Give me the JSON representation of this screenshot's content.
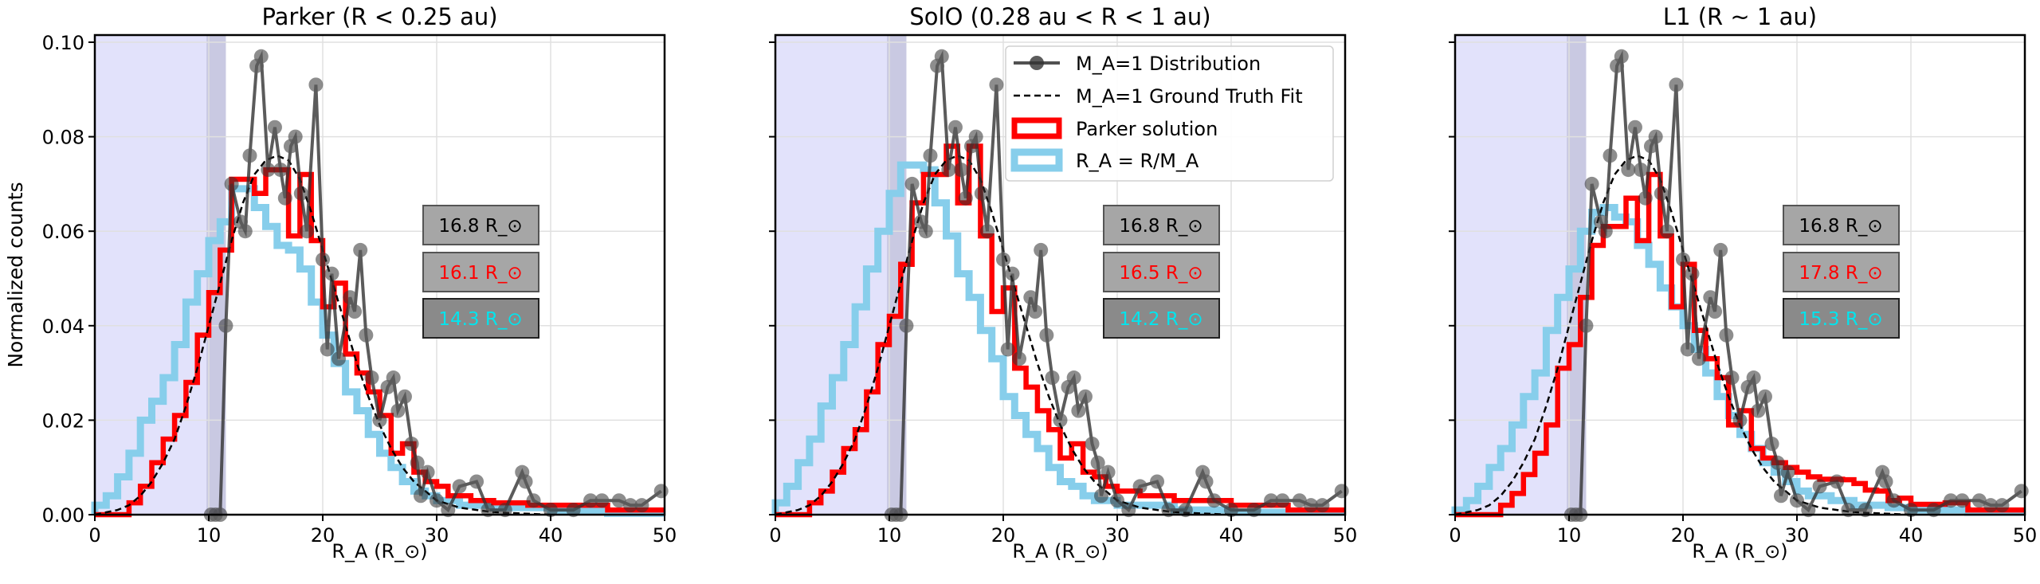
{
  "chart_data": [
    {
      "type": "line",
      "title": "Parker (R < 0.25 au)",
      "xlabel": "R_A (R_⊙)",
      "ylabel": "Normalized counts",
      "xlim": [
        0,
        50
      ],
      "ylim": [
        0,
        0.1015
      ],
      "xticks": [
        0,
        10,
        20,
        30,
        40,
        50
      ],
      "yticks": [
        "0.00",
        "0.02",
        "0.04",
        "0.06",
        "0.08",
        "0.10"
      ],
      "grid": true,
      "shaded_regions": [
        {
          "from": 0,
          "to": 11.5,
          "color": "#e2e2fb"
        },
        {
          "from": 9.8,
          "to": 11.5,
          "color": "#c9c9e2"
        }
      ],
      "bin_width": 1,
      "parker_solution": [
        0,
        0,
        0,
        0.0025,
        0.006,
        0.011,
        0.016,
        0.021,
        0.028,
        0.038,
        0.047,
        0.056,
        0.071,
        0.071,
        0.068,
        0.073,
        0.073,
        0.059,
        0.072,
        0.058,
        0.044,
        0.049,
        0.034,
        0.03,
        0.026,
        0.021,
        0.013,
        0.015,
        0.009,
        0.007,
        0.006,
        0.004,
        0.004,
        0.003,
        0.003,
        0.0025,
        0.0025,
        0.0025,
        0.002,
        0.002,
        0.002,
        0.002,
        0.002,
        0.002,
        0.002,
        0.001,
        0.001,
        0.001,
        0.001,
        0.001
      ],
      "ra_r_over_ma": [
        0.002,
        0.004,
        0.008,
        0.013,
        0.02,
        0.024,
        0.029,
        0.036,
        0.045,
        0.051,
        0.058,
        0.062,
        0.069,
        0.069,
        0.065,
        0.061,
        0.057,
        0.056,
        0.052,
        0.045,
        0.038,
        0.032,
        0.026,
        0.022,
        0.017,
        0.013,
        0.01,
        0.007,
        0.005,
        0.004,
        0.003,
        0.003,
        0.002,
        0.002,
        0.002,
        0.0015,
        0.0015,
        0.0015,
        0.0015,
        0.0015,
        0.0008,
        0.0008,
        0.0008,
        0.0008,
        0.0008,
        0.0003,
        0.0003,
        0.0003,
        0.0003,
        0.0003
      ],
      "annotations": [
        {
          "text": "16.8 R_⊙",
          "color": "#000000",
          "box": "#a6a6a6"
        },
        {
          "text": "16.1 R_⊙",
          "color": "#ff0000",
          "box": "#a6a6a6"
        },
        {
          "text": "14.3 R_⊙",
          "color": "#00e5ee",
          "box": "#8a8a8a"
        }
      ]
    },
    {
      "type": "line",
      "title": "SolO (0.28 au < R < 1 au)",
      "xlabel": "R_A (R_⊙)",
      "xlim": [
        0,
        50
      ],
      "ylim": [
        0,
        0.1015
      ],
      "xticks": [
        0,
        10,
        20,
        30,
        40,
        50
      ],
      "grid": true,
      "legend": {
        "placement": "top-right",
        "entries": [
          "M_A=1 Distribution",
          "M_A=1 Ground Truth Fit",
          "Parker solution",
          "R_A = R/M_A"
        ]
      },
      "bin_width": 1,
      "parker_solution": [
        0,
        0,
        0,
        0.0025,
        0.005,
        0.009,
        0.014,
        0.018,
        0.026,
        0.036,
        0.042,
        0.053,
        0.066,
        0.072,
        0.072,
        0.078,
        0.066,
        0.078,
        0.059,
        0.043,
        0.048,
        0.031,
        0.027,
        0.022,
        0.018,
        0.012,
        0.015,
        0.009,
        0.008,
        0.006,
        0.005,
        0.005,
        0.004,
        0.004,
        0.004,
        0.003,
        0.003,
        0.003,
        0.003,
        0.003,
        0.002,
        0.002,
        0.002,
        0.002,
        0.002,
        0.001,
        0.001,
        0.001,
        0.001,
        0.001
      ],
      "ra_r_over_ma": [
        0.0025,
        0.006,
        0.011,
        0.016,
        0.023,
        0.029,
        0.036,
        0.044,
        0.052,
        0.06,
        0.068,
        0.074,
        0.074,
        0.073,
        0.066,
        0.059,
        0.051,
        0.046,
        0.039,
        0.033,
        0.025,
        0.021,
        0.017,
        0.014,
        0.01,
        0.007,
        0.006,
        0.004,
        0.003,
        0.003,
        0.002,
        0.002,
        0.002,
        0.002,
        0.002,
        0.001,
        0.001,
        0.001,
        0.001,
        0.001,
        0.0005,
        0.0005,
        0.0005,
        0.0005,
        0.0005,
        0.0005,
        0.0005,
        0.0005,
        0.0005,
        0.0005
      ],
      "annotations": [
        {
          "text": "16.8 R_⊙",
          "color": "#000000",
          "box": "#a6a6a6"
        },
        {
          "text": "16.5 R_⊙",
          "color": "#ff0000",
          "box": "#a6a6a6"
        },
        {
          "text": "14.2 R_⊙",
          "color": "#00e5ee",
          "box": "#8a8a8a"
        }
      ]
    },
    {
      "type": "line",
      "title": "L1 (R ~ 1 au)",
      "xlabel": "R_A (R_⊙)",
      "xlim": [
        0,
        50
      ],
      "ylim": [
        0,
        0.1015
      ],
      "xticks": [
        0,
        10,
        20,
        30,
        40,
        50
      ],
      "grid": true,
      "bin_width": 1,
      "parker_solution": [
        0,
        0,
        0,
        0,
        0.002,
        0.0045,
        0.0085,
        0.013,
        0.019,
        0.031,
        0.036,
        0.046,
        0.057,
        0.061,
        0.061,
        0.067,
        0.058,
        0.072,
        0.059,
        0.044,
        0.053,
        0.039,
        0.033,
        0.029,
        0.019,
        0.022,
        0.014,
        0.012,
        0.011,
        0.01,
        0.009,
        0.008,
        0.0075,
        0.0075,
        0.0074,
        0.0066,
        0.0052,
        0.005,
        0.003,
        0.0035,
        0.0022,
        0.0022,
        0.0022,
        0.0025,
        0.0025,
        0.001,
        0.001,
        0.001,
        0.001,
        0.001
      ],
      "ra_r_over_ma": [
        0.001,
        0.003,
        0.006,
        0.01,
        0.014,
        0.019,
        0.025,
        0.03,
        0.039,
        0.046,
        0.052,
        0.06,
        0.064,
        0.065,
        0.063,
        0.062,
        0.057,
        0.053,
        0.048,
        0.044,
        0.04,
        0.035,
        0.03,
        0.025,
        0.021,
        0.017,
        0.014,
        0.011,
        0.009,
        0.007,
        0.005,
        0.004,
        0.004,
        0.003,
        0.003,
        0.002,
        0.002,
        0.002,
        0.0015,
        0.0015,
        0.001,
        0.001,
        0.001,
        0.001,
        0.001,
        0.0005,
        0.0005,
        0.0005,
        0.0005,
        0.0005
      ],
      "annotations": [
        {
          "text": "16.8 R_⊙",
          "color": "#000000",
          "box": "#a6a6a6"
        },
        {
          "text": "17.8 R_⊙",
          "color": "#ff0000",
          "box": "#a6a6a6"
        },
        {
          "text": "15.3 R_⊙",
          "color": "#00e5ee",
          "box": "#8a8a8a"
        }
      ]
    }
  ],
  "shared_series": {
    "ma1_distribution": {
      "x": [
        10.2,
        10.6,
        11,
        11.5,
        12,
        12.8,
        13.2,
        13.6,
        14.2,
        14.6,
        15.2,
        15.8,
        16.3,
        16.7,
        17.2,
        17.6,
        18.1,
        18.6,
        19.4,
        20,
        20.4,
        20.8,
        21.4,
        22.4,
        22.8,
        23.3,
        23.8,
        24.3,
        25,
        25.7,
        26.2,
        26.6,
        27.2,
        27.8,
        28.3,
        28.6,
        29.2,
        30,
        31,
        32,
        33.5,
        34.5,
        36,
        37.5,
        37.8,
        38.5,
        40,
        42,
        43.5,
        44.5,
        46,
        47,
        48,
        49.7
      ],
      "y": [
        0,
        0,
        0,
        0.04,
        0.07,
        0.062,
        0.06,
        0.076,
        0.095,
        0.097,
        0.073,
        0.082,
        0.073,
        0.067,
        0.078,
        0.08,
        0.068,
        0.06,
        0.091,
        0.054,
        0.035,
        0.051,
        0.033,
        0.046,
        0.043,
        0.056,
        0.038,
        0.029,
        0.02,
        0.027,
        0.029,
        0.022,
        0.025,
        0.015,
        0.011,
        0.004,
        0.009,
        0.003,
        0.001,
        0.006,
        0.007,
        0.001,
        0.001,
        0.009,
        0.007,
        0.003,
        0.001,
        0.001,
        0.003,
        0.003,
        0.003,
        0.002,
        0.002,
        0.005
      ]
    },
    "ground_truth_fit": {
      "x": [
        0,
        1,
        2,
        3,
        4,
        5,
        6,
        7,
        8,
        9,
        10,
        11,
        12,
        13,
        14,
        15,
        16,
        17,
        18,
        19,
        20,
        21,
        22,
        23,
        24,
        25,
        26,
        27,
        28,
        29,
        30,
        32,
        35,
        40
      ],
      "y": [
        0,
        0.0005,
        0.001,
        0.002,
        0.004,
        0.007,
        0.011,
        0.016,
        0.023,
        0.031,
        0.04,
        0.049,
        0.058,
        0.066,
        0.072,
        0.075,
        0.076,
        0.075,
        0.071,
        0.064,
        0.056,
        0.048,
        0.04,
        0.032,
        0.025,
        0.019,
        0.014,
        0.01,
        0.007,
        0.005,
        0.003,
        0.0015,
        0.0005,
        0
      ]
    }
  },
  "colors": {
    "distribution": "#333333",
    "fit": "#000000",
    "parker": "#ff0000",
    "ra": "#87ceeb",
    "grid": "#e0e0e0"
  }
}
